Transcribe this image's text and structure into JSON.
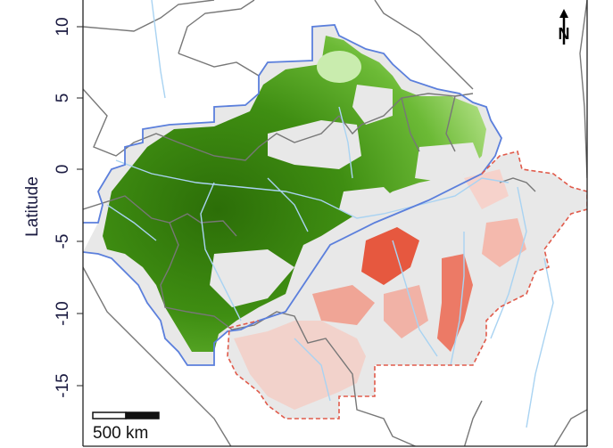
{
  "axis": {
    "ylabel": "Latitude",
    "yticks": [
      "10",
      "5",
      "0",
      "-5",
      "-10",
      "-15"
    ]
  },
  "scale_bar": {
    "label": "500 km"
  },
  "north_arrow": {
    "label": "N"
  },
  "colors": {
    "north_region_boundary": "#5b7fdc",
    "south_region_boundary": "#e05a4a",
    "high_north_fill": "#2f7d0a",
    "low_north_fill": "#9bd46a",
    "high_south_fill": "#e5553f",
    "low_south_fill": "#f2c8c0",
    "no_data_fill": "#e6e6e6",
    "country_borders": "#777777",
    "rivers": "#a9d3f2"
  }
}
